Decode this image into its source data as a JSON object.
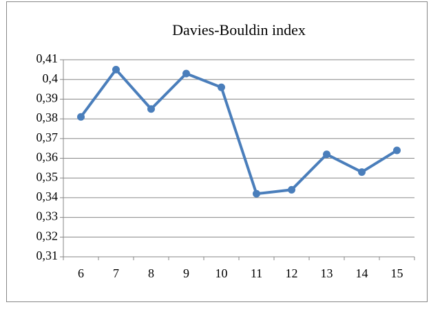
{
  "chart_data": {
    "type": "line",
    "title": "Davies-Bouldin index",
    "categories": [
      "6",
      "7",
      "8",
      "9",
      "10",
      "11",
      "12",
      "13",
      "14",
      "15"
    ],
    "series": [
      {
        "name": "Davies-Bouldin index",
        "color": "#4a7ebb",
        "values": [
          0.381,
          0.405,
          0.385,
          0.403,
          0.396,
          0.342,
          0.344,
          0.362,
          0.353,
          0.364
        ]
      }
    ],
    "ylim": [
      0.31,
      0.41
    ],
    "yticks": [
      {
        "value": 0.31,
        "label": "0,31"
      },
      {
        "value": 0.32,
        "label": "0,32"
      },
      {
        "value": 0.33,
        "label": "0,33"
      },
      {
        "value": 0.34,
        "label": "0,34"
      },
      {
        "value": 0.35,
        "label": "0,35"
      },
      {
        "value": 0.36,
        "label": "0,36"
      },
      {
        "value": 0.37,
        "label": "0,37"
      },
      {
        "value": 0.38,
        "label": "0,38"
      },
      {
        "value": 0.39,
        "label": "0,39"
      },
      {
        "value": 0.4,
        "label": "0,4"
      },
      {
        "value": 0.41,
        "label": "0,41"
      }
    ],
    "grid": true
  }
}
